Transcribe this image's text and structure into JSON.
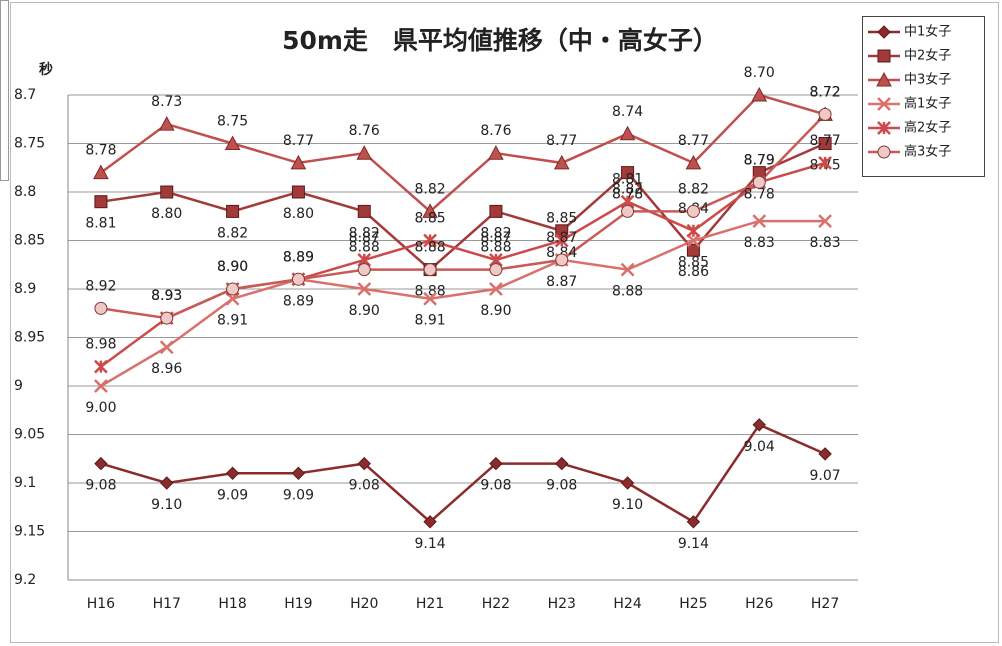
{
  "chart_data": {
    "type": "line",
    "title": "50m走　県平均値推移（中・高女子）",
    "y_label": "秒",
    "categories": [
      "H16",
      "H17",
      "H18",
      "H19",
      "H20",
      "H21",
      "H22",
      "H23",
      "H24",
      "H25",
      "H26",
      "H27"
    ],
    "ylim": [
      9.2,
      8.7
    ],
    "yticks": [
      8.7,
      8.75,
      8.8,
      8.85,
      8.9,
      8.95,
      9,
      9.05,
      9.1,
      9.15,
      9.2
    ],
    "grid": true,
    "legend": "right",
    "series": [
      {
        "name": "中1女子",
        "color": "#8b2b2b",
        "marker": "diamond",
        "values": [
          9.08,
          9.1,
          9.09,
          9.09,
          9.08,
          9.14,
          9.08,
          9.08,
          9.1,
          9.14,
          9.04,
          9.07
        ],
        "value_labels": [
          "9.08",
          "9.10",
          "9.09",
          "9.09",
          "9.08",
          "9.14",
          "9.08",
          "9.08",
          "9.10",
          "9.14",
          "9.04",
          "9.07"
        ]
      },
      {
        "name": "中2女子",
        "color": "#a33a3a",
        "marker": "square",
        "values": [
          8.81,
          8.8,
          8.82,
          8.8,
          8.82,
          8.88,
          8.82,
          8.84,
          8.78,
          8.86,
          8.78,
          8.75
        ],
        "value_labels": [
          "8.81",
          "8.80",
          "8.82",
          "8.80",
          "8.82",
          "8.88",
          "8.82",
          "8.84",
          "8.78",
          "8.86",
          "8.78",
          "8.75"
        ]
      },
      {
        "name": "中3女子",
        "color": "#c0504d",
        "marker": "triangle",
        "values": [
          8.78,
          8.73,
          8.75,
          8.77,
          8.76,
          8.82,
          8.76,
          8.77,
          8.74,
          8.77,
          8.7,
          8.72
        ],
        "value_labels": [
          "8.78",
          "8.73",
          "8.75",
          "8.77",
          "8.76",
          "8.82",
          "8.76",
          "8.77",
          "8.74",
          "8.77",
          "8.70",
          "8.72"
        ]
      },
      {
        "name": "高1女子",
        "color": "#d9706c",
        "marker": "x",
        "values": [
          9.0,
          8.96,
          8.91,
          8.89,
          8.9,
          8.91,
          8.9,
          8.87,
          8.88,
          8.85,
          8.83,
          8.83
        ],
        "value_labels": [
          "9.00",
          "8.96",
          "8.91",
          "8.89",
          "8.90",
          "8.91",
          "8.90",
          "8.87",
          "8.88",
          "8.85",
          "8.83",
          "8.83"
        ]
      },
      {
        "name": "高2女子",
        "color": "#cc4a4a",
        "marker": "star",
        "values": [
          8.98,
          8.93,
          8.9,
          8.89,
          8.87,
          8.85,
          8.87,
          8.85,
          8.81,
          8.84,
          8.79,
          8.77
        ],
        "value_labels": [
          "8.98",
          "8.93",
          "8.90",
          "8.89",
          "8.87",
          "8.85",
          "8.87",
          "8.85",
          "8.81",
          "8.84",
          "8.79",
          "8.77"
        ]
      },
      {
        "name": "高3女子",
        "color": "#c65b57",
        "marker": "circle",
        "values": [
          8.92,
          8.93,
          8.9,
          8.89,
          8.88,
          8.88,
          8.88,
          8.87,
          8.82,
          8.82,
          8.79,
          8.72
        ],
        "value_labels": [
          "8.92",
          "8.93",
          "8.90",
          "8.89",
          "8.88",
          "8.88",
          "8.88",
          "8.87",
          "8.82",
          "8.82",
          "8.79",
          "8.72"
        ]
      }
    ]
  }
}
